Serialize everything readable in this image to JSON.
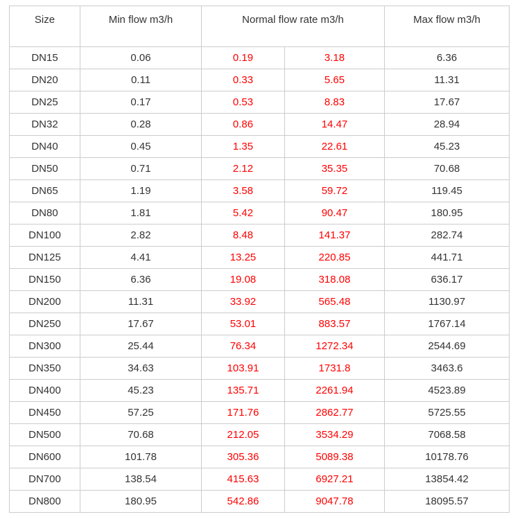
{
  "colors": {
    "normal_flow_text": "#ff0000",
    "default_text": "#333333",
    "table_border": "#cccccc",
    "background": "#ffffff"
  },
  "chart_data": {
    "type": "table",
    "title": "",
    "headers": {
      "size": "Size",
      "min_flow": "Min flow m3/h",
      "normal_flow": "Normal flow rate m3/h",
      "max_flow": "Max flow m3/h"
    },
    "units": "m3/h",
    "rows": [
      {
        "size": "DN15",
        "min": "0.06",
        "normal_low": "0.19",
        "normal_high": "3.18",
        "max": "6.36"
      },
      {
        "size": "DN20",
        "min": "0.11",
        "normal_low": "0.33",
        "normal_high": "5.65",
        "max": "11.31"
      },
      {
        "size": "DN25",
        "min": "0.17",
        "normal_low": "0.53",
        "normal_high": "8.83",
        "max": "17.67"
      },
      {
        "size": "DN32",
        "min": "0.28",
        "normal_low": "0.86",
        "normal_high": "14.47",
        "max": "28.94"
      },
      {
        "size": "DN40",
        "min": "0.45",
        "normal_low": "1.35",
        "normal_high": "22.61",
        "max": "45.23"
      },
      {
        "size": "DN50",
        "min": "0.71",
        "normal_low": "2.12",
        "normal_high": "35.35",
        "max": "70.68"
      },
      {
        "size": "DN65",
        "min": "1.19",
        "normal_low": "3.58",
        "normal_high": "59.72",
        "max": "119.45"
      },
      {
        "size": "DN80",
        "min": "1.81",
        "normal_low": "5.42",
        "normal_high": "90.47",
        "max": "180.95"
      },
      {
        "size": "DN100",
        "min": "2.82",
        "normal_low": "8.48",
        "normal_high": "141.37",
        "max": "282.74"
      },
      {
        "size": "DN125",
        "min": "4.41",
        "normal_low": "13.25",
        "normal_high": "220.85",
        "max": "441.71"
      },
      {
        "size": "DN150",
        "min": "6.36",
        "normal_low": "19.08",
        "normal_high": "318.08",
        "max": "636.17"
      },
      {
        "size": "DN200",
        "min": "11.31",
        "normal_low": "33.92",
        "normal_high": "565.48",
        "max": "1130.97"
      },
      {
        "size": "DN250",
        "min": "17.67",
        "normal_low": "53.01",
        "normal_high": "883.57",
        "max": "1767.14"
      },
      {
        "size": "DN300",
        "min": "25.44",
        "normal_low": "76.34",
        "normal_high": "1272.34",
        "max": "2544.69"
      },
      {
        "size": "DN350",
        "min": "34.63",
        "normal_low": "103.91",
        "normal_high": "1731.8",
        "max": "3463.6"
      },
      {
        "size": "DN400",
        "min": "45.23",
        "normal_low": "135.71",
        "normal_high": "2261.94",
        "max": "4523.89"
      },
      {
        "size": "DN450",
        "min": "57.25",
        "normal_low": "171.76",
        "normal_high": "2862.77",
        "max": "5725.55"
      },
      {
        "size": "DN500",
        "min": "70.68",
        "normal_low": "212.05",
        "normal_high": "3534.29",
        "max": "7068.58"
      },
      {
        "size": "DN600",
        "min": "101.78",
        "normal_low": "305.36",
        "normal_high": "5089.38",
        "max": "10178.76"
      },
      {
        "size": "DN700",
        "min": "138.54",
        "normal_low": "415.63",
        "normal_high": "6927.21",
        "max": "13854.42"
      },
      {
        "size": "DN800",
        "min": "180.95",
        "normal_low": "542.86",
        "normal_high": "9047.78",
        "max": "18095.57"
      }
    ]
  }
}
